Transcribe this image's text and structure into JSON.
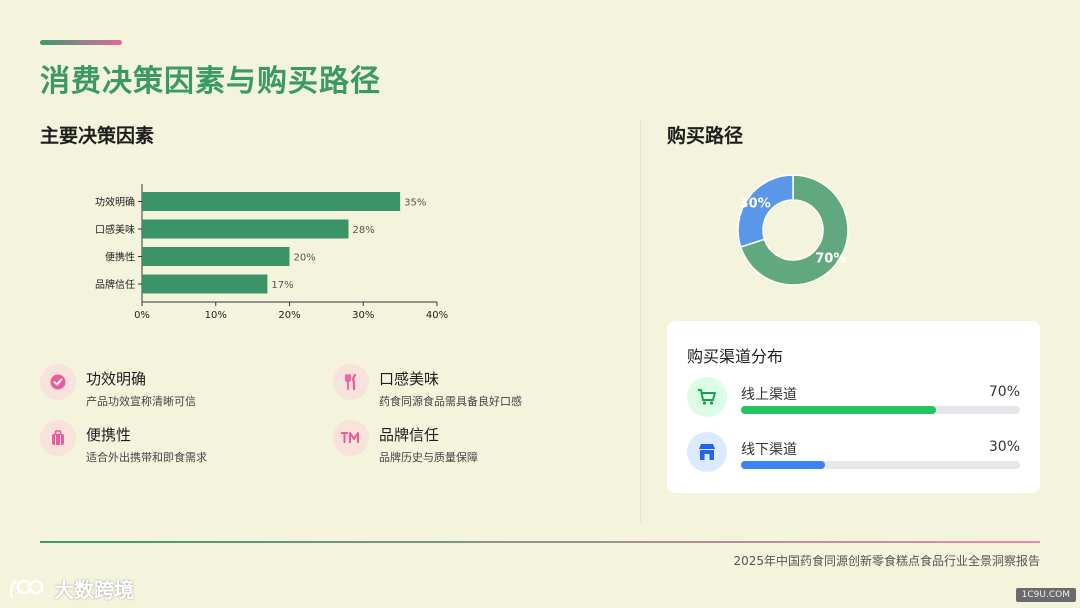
{
  "page_title": "消费决策因素与购买路径",
  "left_section_title": "主要决策因素",
  "right_section_title": "购买路径",
  "chart_data": [
    {
      "type": "bar",
      "orientation": "horizontal",
      "categories": [
        "功效明确",
        "口感美味",
        "便携性",
        "品牌信任"
      ],
      "values": [
        35,
        28,
        20,
        17
      ],
      "value_labels": [
        "35%",
        "28%",
        "20%",
        "17%"
      ],
      "xlim": [
        0,
        40
      ],
      "xticks": [
        0,
        10,
        20,
        30,
        40
      ],
      "xtick_labels": [
        "0%",
        "10%",
        "20%",
        "30%",
        "40%"
      ],
      "color": "#3a9468"
    },
    {
      "type": "pie",
      "donut": true,
      "categories": [
        "线上渠道",
        "线下渠道"
      ],
      "values": [
        70,
        30
      ],
      "value_labels": [
        "70%",
        "30%"
      ],
      "colors": [
        "#62a87e",
        "#5b97e8"
      ]
    }
  ],
  "factors": [
    {
      "name": "功效明确",
      "desc": "产品功效宣称清晰可信",
      "icon": "check-badge-icon"
    },
    {
      "name": "口感美味",
      "desc": "药食同源食品需具备良好口感",
      "icon": "utensils-icon"
    },
    {
      "name": "便携性",
      "desc": "适合外出携带和即食需求",
      "icon": "suitcase-icon"
    },
    {
      "name": "品牌信任",
      "desc": "品牌历史与质量保障",
      "icon": "trademark-icon"
    }
  ],
  "channels": {
    "title": "购买渠道分布",
    "items": [
      {
        "label": "线上渠道",
        "value": "70%",
        "pct": 70,
        "icon": "cart-icon",
        "color": "#22c55e",
        "icon_bg": "#dcfce7",
        "icon_color": "#16a34a"
      },
      {
        "label": "线下渠道",
        "value": "30%",
        "pct": 30,
        "icon": "store-icon",
        "color": "#3b82f6",
        "icon_bg": "#dbeafe",
        "icon_color": "#2563eb"
      }
    ]
  },
  "footer": "2025年中国药食同源创新零食糕点食品行业全景洞察报告",
  "watermark": "大数跨境",
  "watermark_right": "1C9U.COM"
}
